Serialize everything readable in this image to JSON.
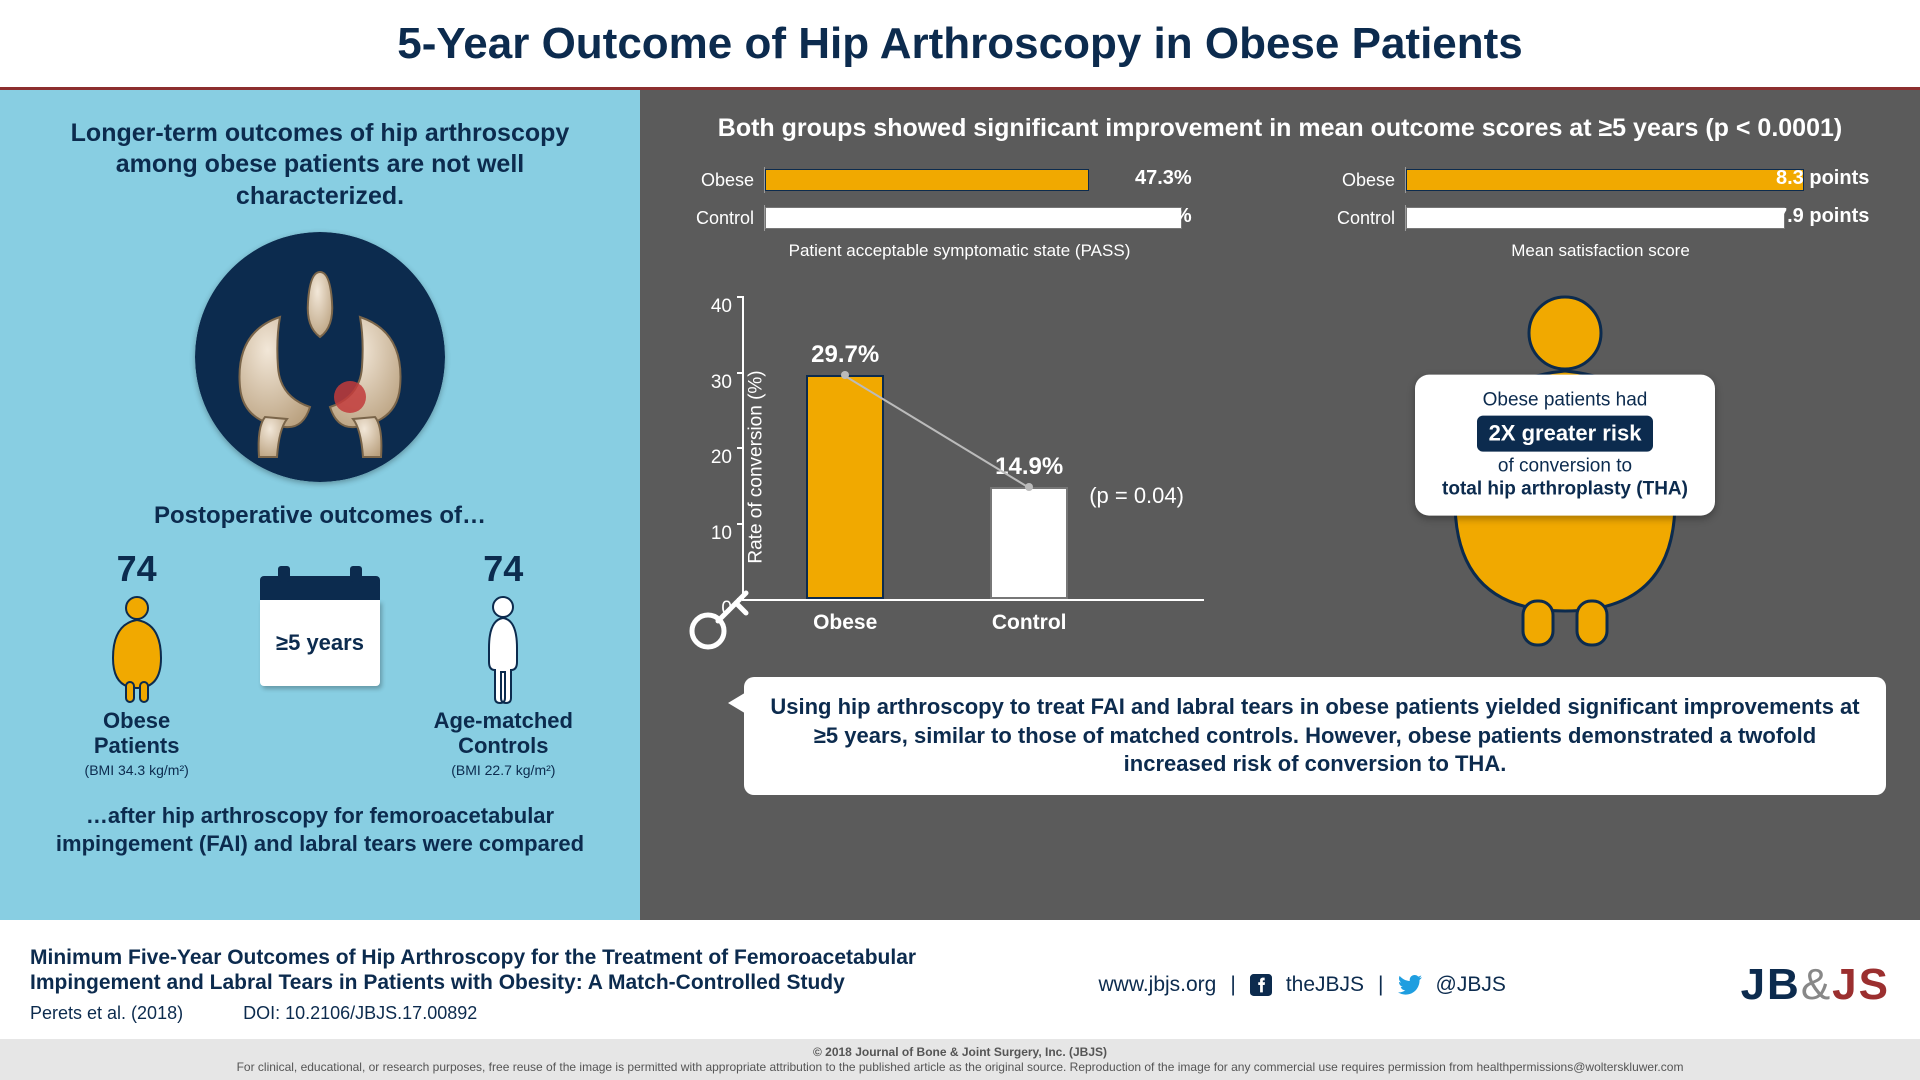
{
  "colors": {
    "title": "#0c2b4e",
    "accent_rule": "#8c2f2f",
    "left_bg": "#88cee2",
    "left_text": "#0c2b4e",
    "right_bg": "#5b5b5b",
    "right_text": "#ffffff",
    "bar_obese": "#f1a900",
    "bar_obese_stroke": "#0c2b4e",
    "bar_control": "#ffffff",
    "bar_control_stroke": "#777777",
    "hip_bg": "#0c2b4e",
    "calendar_top": "#0c2b4e",
    "logo_jb": "#0c2b4e",
    "logo_js": "#9b2f2f",
    "risk_tag_bg": "#0c2b4e",
    "grey_axis": "#ffffff"
  },
  "title": "5-Year Outcome of Hip Arthroscopy in Obese Patients",
  "left": {
    "intro": "Longer-term outcomes of hip arthroscopy among obese patients are not well characterized.",
    "postop": "Postoperative outcomes of…",
    "cohorts": {
      "obese": {
        "n": "74",
        "label": "Obese\nPatients",
        "bmi": "(BMI 34.3 kg/m²)"
      },
      "control": {
        "n": "74",
        "label": "Age-matched\nControls",
        "bmi": "(BMI 22.7 kg/m²)"
      }
    },
    "calendar": "≥5 years",
    "outro": "…after hip arthroscopy for femoroacetabular impingement (FAI) and labral tears were compared"
  },
  "right": {
    "headline": "Both groups showed significant improvement in mean outcome scores at ≥5 years (p < 0.0001)",
    "mini": {
      "pass": {
        "caption": "Patient acceptable symptomatic state (PASS)",
        "max": 70,
        "obese": {
          "label": "Obese",
          "value": 47.3,
          "display": "47.3%"
        },
        "control": {
          "label": "Control",
          "value": 60.8,
          "display": "60.8%"
        }
      },
      "satisfaction": {
        "caption": "Mean satisfaction score",
        "max": 10,
        "obese": {
          "label": "Obese",
          "value": 8.3,
          "display": "8.3 points"
        },
        "control": {
          "label": "Control",
          "value": 7.9,
          "display": "7.9 points"
        }
      }
    },
    "conversion_chart": {
      "type": "bar",
      "ylabel": "Rate of conversion (%)",
      "ylim": [
        0,
        40
      ],
      "ytick_step": 10,
      "categories": [
        "Obese",
        "Control"
      ],
      "values": [
        29.7,
        14.9
      ],
      "value_labels": [
        "29.7%",
        "14.9%"
      ],
      "p_label": "(p = 0.04)"
    },
    "risk": {
      "line1": "Obese patients had",
      "tag": "2X greater risk",
      "line2": "of conversion to",
      "line3": "total hip arthroplasty (THA)"
    },
    "summary": "Using hip arthroscopy to treat FAI and labral tears in obese patients yielded significant improvements at ≥5 years, similar to those of matched controls. However, obese patients demonstrated a twofold increased risk of conversion to THA."
  },
  "footer": {
    "paper_title": "Minimum Five-Year Outcomes of Hip Arthroscopy for the Treatment of Femoroacetabular Impingement and Labral Tears in Patients with Obesity: A Match-Controlled Study",
    "authors": "Perets et al. (2018)",
    "doi": "DOI: 10.2106/JBJS.17.00892",
    "site": "www.jbjs.org",
    "fb": "theJBJS",
    "tw": "@JBJS",
    "logo_left": "JB",
    "logo_amp": "&",
    "logo_right": "JS",
    "disclaimer_top": "© 2018 Journal of Bone & Joint Surgery, Inc. (JBJS)",
    "disclaimer_bottom": "For clinical, educational, or research purposes, free reuse of the image is permitted with appropriate attribution to the published article as the original source. Reproduction of the image for any commercial use requires permission from healthpermissions@wolterskluwer.com"
  }
}
